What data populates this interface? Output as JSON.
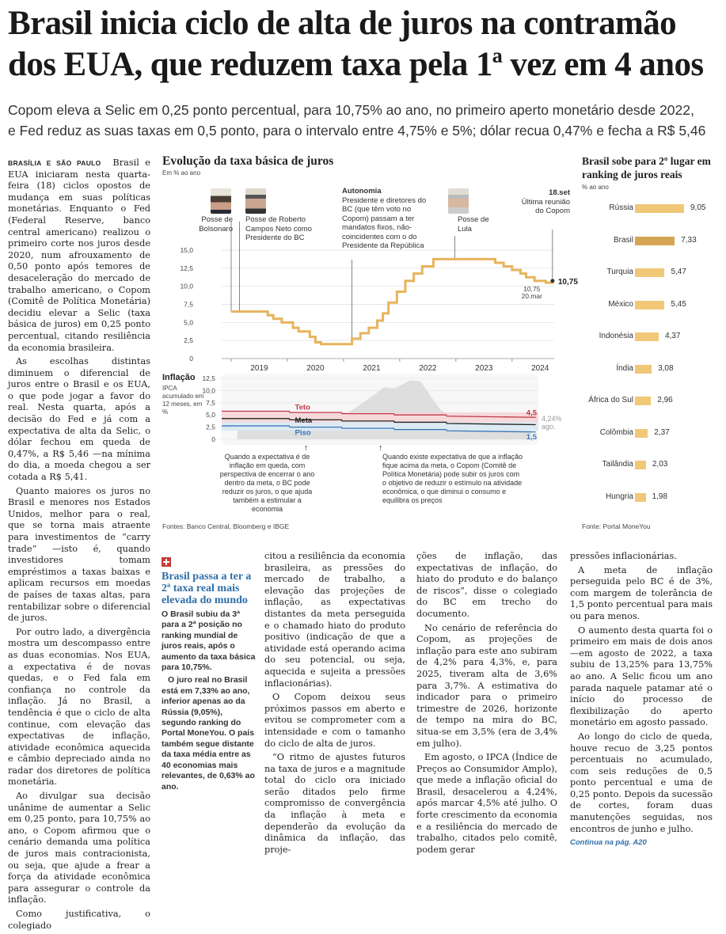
{
  "headline": {
    "line1": "Brasil inicia ciclo de alta de juros na contramão",
    "line2": "dos EUA, que reduzem taxa pela 1ª vez em 4 anos"
  },
  "subhead": {
    "line1": "Copom eleva a Selic em 0,25 ponto percentual, para 10,75% ao ano, no primeiro aperto monetário desde 2022,",
    "line2": "e Fed reduz as suas taxas em 0,5 ponto, para o intervalo entre 4,75% e 5%; dólar recua 0,47% e fecha a R$ 5,46"
  },
  "article": {
    "dateline": "BRASÍLIA E SÃO PAULO",
    "col1": [
      "Brasil e EUA iniciaram nesta quarta-feira (18) ciclos opostos de mudança em suas políticas monetárias. Enquanto o Fed (Federal Reserve, banco central americano) realizou o primeiro corte nos juros desde 2020, num afrouxamento de 0,50 ponto após temores de desaceleração do mercado de trabalho americano, o Copom (Comitê de Política Monetária) decidiu elevar a Selic (taxa básica de juros) em 0,25 ponto percentual, citando resiliência da economia brasileira.",
      "As escolhas distintas diminuem o diferencial de juros entre o Brasil e os EUA, o que pode jogar a favor do real. Nesta quarta, após a decisão do Fed e já com a expectativa de alta da Selic, o dólar fechou em queda de 0,47%, a R$ 5,46 —na mínima do dia, a moeda chegou a ser cotada a R$ 5,41.",
      "Quanto maiores os juros no Brasil e menores nos Estados Unidos, melhor para o real, que se torna mais atraente para investimentos de “carry trade” —isto é, quando investidores tomam empréstimos a taxas baixas e aplicam recursos em moedas de países de taxas altas, para rentabilizar sobre o diferencial de juros.",
      "Por outro lado, a divergência mostra um descompasso entre as duas economias. Nos EUA, a expectativa é de novas quedas, e o Fed fala em confiança no controle da inflação. Já no Brasil, a tendência é que o ciclo de alta continue, com elevação das expectativas de inflação, atividade econômica aquecida e câmbio depreciado ainda no radar dos diretores de política monetária.",
      "Ao divulgar sua decisão unânime de aumentar a Selic em 0,25 ponto, para 10,75% ao ano, o Copom afirmou que o cenário demanda uma política de juros mais contracionista, ou seja, que ajude a frear a força da atividade econômica para assegurar o controle da inflação.",
      "Como justificativa, o colegiado"
    ],
    "col3": [
      "citou a resiliência da economia brasileira, as pressões do mercado de trabalho, a elevação das projeções de inflação, as expectativas distantes da meta perseguida e o chamado hiato do produto positivo (indicação de que a atividade está operando acima do seu potencial, ou seja, aquecida e sujeita a pressões inflacionárias).",
      "O Copom deixou seus próximos passos em aberto e evitou se comprometer com a intensidade e com o tamanho do ciclo de alta de juros.",
      "“O ritmo de ajustes futuros na taxa de juros e a magnitude total do ciclo ora iniciado serão ditados pelo firme compromisso de convergência da inflação à meta e dependerão da evolução da dinâmica da inflação, das proje-"
    ],
    "col4": [
      "ções de inflação, das expectativas de inflação, do hiato do produto e do balanço de riscos”, disse o colegiado do BC em trecho do documento.",
      "No cenário de referência do Copom, as projeções de inflação para este ano subiram de 4,2% para 4,3%, e, para 2025, tiveram alta de 3,6% para 3,7%. A estimativa do indicador para o primeiro trimestre de 2026, horizonte de tempo na mira do BC, situa-se em 3,5% (era de 3,4% em julho).",
      "Em agosto, o IPCA (Índice de Preços ao Consumidor Amplo), que mede a inflação oficial do Brasil, desacelerou a 4,24%, após marcar 4,5% até julho. O forte crescimento da economia e a resiliência do mercado de trabalho, citados pelo comitê, podem gerar"
    ],
    "col5": [
      "pressões inflacionárias.",
      "A meta de inflação perseguida pelo BC é de 3%, com margem de tolerância de 1,5 ponto percentual para mais ou para menos.",
      "O aumento desta quarta foi o primeiro em mais de dois anos —em agosto de 2022, a taxa subiu de 13,25% para 13,75% ao ano. A Selic ficou um ano parada naquele patamar até o início do processo de flexibilização do aperto monetário em agosto passado.",
      "Ao longo do ciclo de queda, houve recuo de 3,25 pontos percentuais no acumulado, com seis reduções de 0,5 ponto percentual e uma de 0,25 ponto. Depois da sucessão de cortes, foram duas manutenções seguidas, nos encontros de junho e julho."
    ],
    "continued": "Continua na pág. A20"
  },
  "sidebar_box": {
    "title": "Brasil passa a ter a 2ª taxa real mais elevada do mundo",
    "paragraphs": [
      "O Brasil subiu da 3ª para a 2ª posição no ranking mundial de juros reais, após o aumento da taxa básica para 10,75%.",
      "O juro real no Brasil está em 7,33% ao ano, inferior apenas ao da Rússia (9,05%), segundo ranking do Portal MoneYou. O país também segue distante da taxa média entre as 40 economias mais relevantes, de 0,63% ao ano."
    ]
  },
  "main_chart": {
    "title": "Evolução da taxa básica de juros",
    "unit": "Em % ao ano",
    "annotations": {
      "posse_bolsonaro": "Posse de Bolsonaro",
      "posse_campos": "Posse de Roberto Campos Neto como Presidente do BC",
      "autonomia_title": "Autonomia",
      "autonomia_text": "Presidente e diretores do BC (que têm voto no Copom) passam a ter mandatos fixos, não-coincidentes com o do Presidente da República",
      "posse_lula": "Posse de Lula",
      "last_title": "18.set",
      "last_text": "Última reunião do Copom",
      "mar_value": "10,75",
      "mar_date": "20.mar",
      "final_value": "10,75"
    },
    "inflation": {
      "title": "Inflação",
      "subtitle": "IPCA acumulado em 12 meses, em %",
      "teto": "Teto",
      "meta": "Meta",
      "piso": "Piso",
      "teto_value": "4,5",
      "piso_value": "1,5",
      "ipca_value": "4,24%",
      "ipca_date": "ago."
    },
    "notes": {
      "left": "Quando a expectativa é de inflação em queda, com perspectiva de encerrar o ano dentro da meta, o BC pode reduzir os juros, o que ajuda também a estimular a economia",
      "right": "Quando existe expectativa de que a inflação fique acima da meta, o Copom (Comitê de Política Monetária) pode subir os juros com o objetivo de reduzir o estímulo na atividade econômica, o que diminui o consumo e equilibra os preços"
    },
    "source": "Fontes: Banco Central, Bloomberg e IBGE"
  },
  "ranking_chart": {
    "title": "Brasil sobe para 2º lugar em ranking de juros reais",
    "unit": "% ao ano",
    "source": "Fonte: Portal MoneYou"
  },
  "chart_data": [
    {
      "type": "line",
      "title": "Evolução da taxa básica de juros",
      "ylabel": "Em % ao ano",
      "ylim": [
        0,
        15
      ],
      "yticks": [
        "0",
        "2,5",
        "5,0",
        "7,5",
        "10,0",
        "12,5",
        "15,0"
      ],
      "xticks": [
        "2019",
        "2020",
        "2021",
        "2022",
        "2023",
        "2024"
      ],
      "series": [
        {
          "name": "Selic",
          "x": [
            2019.0,
            2019.55,
            2019.65,
            2019.75,
            2019.9,
            2020.1,
            2020.2,
            2020.4,
            2020.5,
            2020.6,
            2021.0,
            2021.15,
            2021.3,
            2021.45,
            2021.6,
            2021.7,
            2021.8,
            2021.95,
            2022.1,
            2022.25,
            2022.4,
            2022.6,
            2023.6,
            2023.7,
            2023.85,
            2024.0,
            2024.15,
            2024.25,
            2024.4,
            2024.6,
            2024.72
          ],
          "values": [
            6.5,
            6.5,
            6.0,
            5.5,
            5.0,
            4.25,
            3.75,
            3.0,
            2.25,
            2.0,
            2.0,
            2.75,
            3.5,
            4.25,
            5.25,
            6.25,
            7.75,
            9.25,
            10.75,
            11.75,
            12.75,
            13.75,
            13.75,
            13.25,
            12.75,
            12.25,
            11.75,
            11.25,
            10.75,
            10.5,
            10.75
          ]
        }
      ]
    },
    {
      "type": "line",
      "title": "Inflação",
      "ylabel": "IPCA acumulado em 12 meses, em %",
      "ylim": [
        0,
        12.5
      ],
      "yticks": [
        "0",
        "2,5",
        "5,0",
        "7,5",
        "10,0",
        "12,5"
      ],
      "series": [
        {
          "name": "Teto",
          "x": [
            2019.0,
            2019.99,
            2020.0,
            2020.99,
            2021.0,
            2021.99,
            2022.0,
            2022.99,
            2023.0,
            2024.7
          ],
          "values": [
            5.75,
            5.75,
            5.5,
            5.5,
            5.25,
            5.25,
            5.0,
            5.0,
            4.75,
            4.5
          ]
        },
        {
          "name": "Meta",
          "x": [
            2019.0,
            2019.99,
            2020.0,
            2020.99,
            2021.0,
            2021.99,
            2022.0,
            2022.99,
            2023.0,
            2024.7
          ],
          "values": [
            4.25,
            4.25,
            4.0,
            4.0,
            3.75,
            3.75,
            3.5,
            3.5,
            3.25,
            3.0
          ]
        },
        {
          "name": "Piso",
          "x": [
            2019.0,
            2019.99,
            2020.0,
            2020.99,
            2021.0,
            2021.99,
            2022.0,
            2022.99,
            2023.0,
            2024.7
          ],
          "values": [
            2.75,
            2.75,
            2.5,
            2.5,
            2.25,
            2.25,
            2.0,
            2.0,
            1.75,
            1.5
          ]
        },
        {
          "name": "IPCA",
          "x": [
            2019.0,
            2019.3,
            2019.6,
            2019.9,
            2020.2,
            2020.4,
            2020.7,
            2021.0,
            2021.3,
            2021.6,
            2021.8,
            2022.0,
            2022.3,
            2022.5,
            2022.7,
            2022.9,
            2023.2,
            2023.5,
            2023.8,
            2024.1,
            2024.4,
            2024.62
          ],
          "values": [
            3.8,
            4.6,
            3.3,
            4.3,
            3.3,
            2.1,
            3.1,
            4.6,
            6.8,
            9.0,
            10.7,
            10.4,
            12.1,
            11.9,
            8.7,
            5.8,
            4.7,
            3.2,
            4.8,
            4.5,
            3.9,
            4.24
          ]
        }
      ]
    },
    {
      "type": "bar",
      "title": "Brasil sobe para 2º lugar em ranking de juros reais",
      "ylabel": "% ao ano",
      "categories": [
        "Rússia",
        "Brasil",
        "Turquia",
        "México",
        "Indonésia",
        "Índia",
        "África do Sul",
        "Colômbia",
        "Tailândia",
        "Hungria"
      ],
      "values": [
        9.05,
        7.33,
        5.47,
        5.45,
        4.37,
        3.08,
        2.96,
        2.37,
        2.03,
        1.98
      ],
      "labels": [
        "9,05",
        "7,33",
        "5,47",
        "5,45",
        "4,37",
        "3,08",
        "2,96",
        "2,37",
        "2,03",
        "1,98"
      ],
      "highlight": "Brasil",
      "colors": {
        "bar": "#f0c878",
        "highlight": "#d4a554"
      }
    }
  ]
}
